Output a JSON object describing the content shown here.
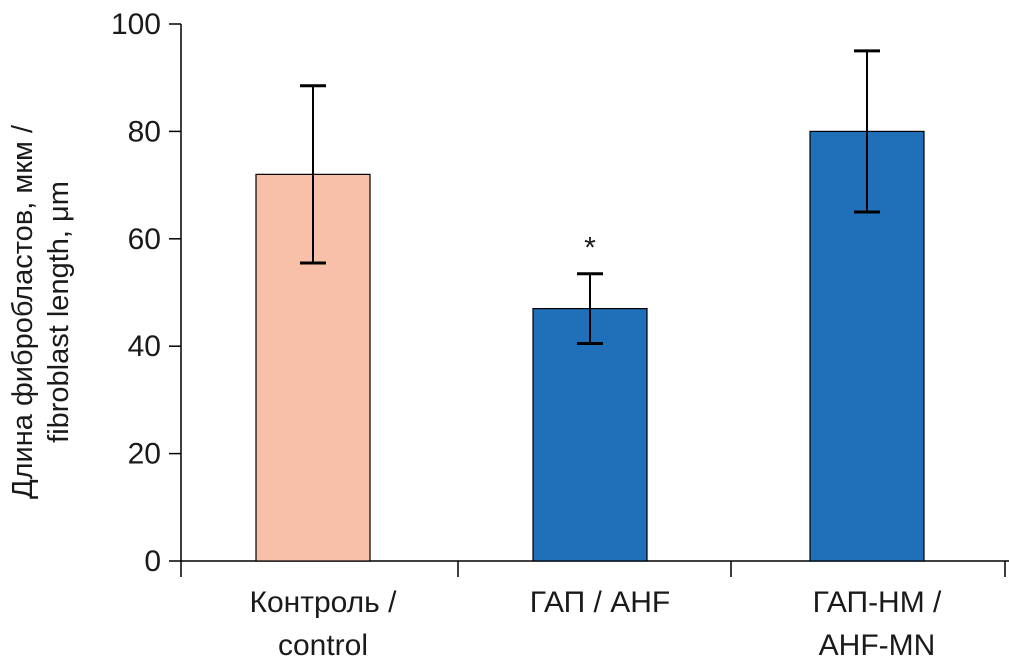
{
  "chart_data": {
    "type": "bar",
    "title": "",
    "ylabel_lines": [
      "Длина фибробластов, мкм /",
      "fibroblast length, μm"
    ],
    "ylim": [
      0,
      100
    ],
    "yticks": [
      "0",
      "20",
      "40",
      "60",
      "80",
      "100"
    ],
    "categories": [
      {
        "line1": "Контроль /",
        "line2": "control"
      },
      {
        "line1": "ГАП / AHF",
        "line2": ""
      },
      {
        "line1": "ГАП-НМ /",
        "line2": "AHF-MN"
      }
    ],
    "values": [
      72,
      47,
      80
    ],
    "errors": [
      16.5,
      6.5,
      15
    ],
    "annotations": [
      "",
      "*",
      ""
    ],
    "colors": [
      "#f8c0a8",
      "#1f70b8",
      "#1f70b8"
    ],
    "grid": false
  }
}
